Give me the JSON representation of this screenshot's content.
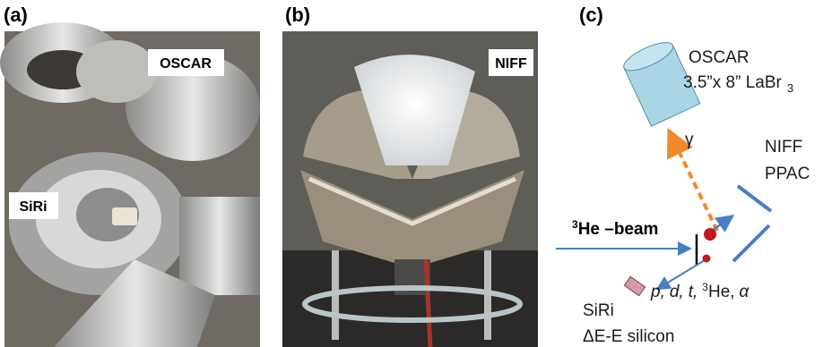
{
  "panel_a": {
    "label": "(a)",
    "tags": [
      "OSCAR",
      "SiRi"
    ]
  },
  "panel_b": {
    "label": "(b)",
    "tags": [
      "NIFF"
    ]
  },
  "panel_c": {
    "label": "(c)",
    "oscar": {
      "name": "OSCAR",
      "size": "3.5”x 8” LaBr",
      "size_subscript": "3"
    },
    "gamma": "γ",
    "niff": [
      "NIFF",
      "PPAC"
    ],
    "beam": {
      "superscript": "3",
      "text": "He –beam"
    },
    "ejectiles": [
      "p,",
      "d,",
      "t,",
      "3",
      "He,",
      "α"
    ],
    "siri": [
      "SiRi",
      "ΔE-E silicon"
    ]
  }
}
